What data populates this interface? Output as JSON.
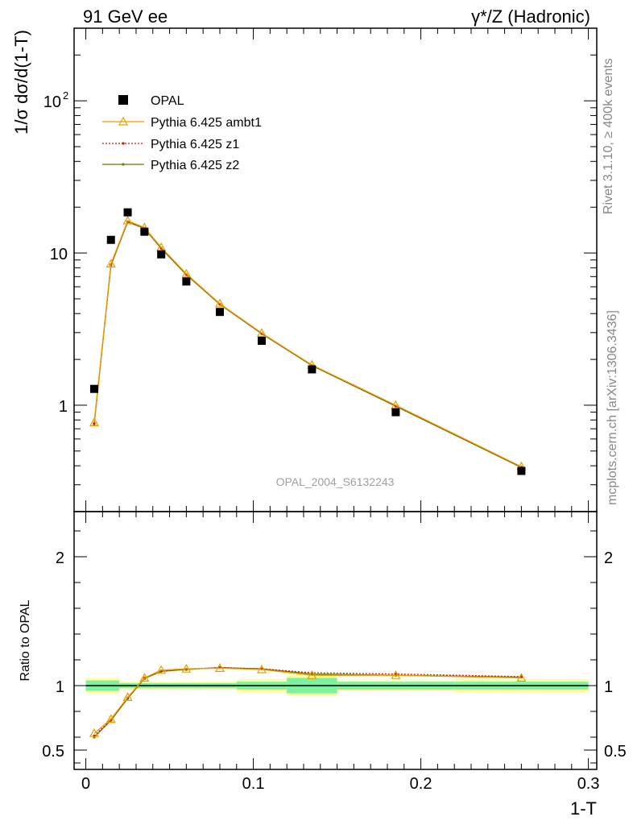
{
  "header": {
    "left": "91 GeV ee",
    "right": "γ*/Z (Hadronic)"
  },
  "side_labels": {
    "rivet": "Rivet 3.1.10, ≥ 400k events",
    "source": "mcplots.cern.ch [arXiv:1306.3436]"
  },
  "analysis_label": "OPAL_2004_S6132243",
  "colors": {
    "ambt1": "#e5a000",
    "z1": "#d21a00",
    "z2": "#6b7a00",
    "band_inner": "#7ff0a0",
    "band_outer": "#ffff99"
  },
  "chart_data": [
    {
      "type": "line",
      "panel": "main",
      "ylabel": "1/σ dσ/d(1-T)",
      "xlim": [
        -0.007,
        0.305
      ],
      "ylim": [
        0.2,
        300
      ],
      "yscale": "log",
      "y_ticks": [
        {
          "v": 1,
          "base": "1",
          "exp": ""
        },
        {
          "v": 10,
          "base": "10",
          "exp": ""
        },
        {
          "v": 100,
          "base": "10",
          "exp": "2"
        }
      ],
      "legend": {
        "placement": "top-left"
      },
      "series": [
        {
          "name": "OPAL",
          "key": "data",
          "style": "square",
          "x": [
            0.005,
            0.015,
            0.025,
            0.035,
            0.045,
            0.06,
            0.08,
            0.105,
            0.135,
            0.185,
            0.26
          ],
          "y": [
            1.28,
            12.2,
            18.5,
            13.8,
            9.8,
            6.5,
            4.1,
            2.65,
            1.72,
            0.9,
            0.37
          ]
        },
        {
          "name": "Pythia 6.425 ambt1",
          "key": "ambt1",
          "style": "triangle",
          "x": [
            0.005,
            0.015,
            0.025,
            0.035,
            0.045,
            0.06,
            0.08,
            0.105,
            0.135,
            0.185,
            0.26
          ],
          "y": [
            0.77,
            8.5,
            16.3,
            14.7,
            10.9,
            7.3,
            4.65,
            2.98,
            1.84,
            1.0,
            0.395
          ]
        },
        {
          "name": "Pythia 6.425 z1",
          "key": "z1",
          "style": "dot",
          "x": [
            0.005,
            0.015,
            0.025,
            0.035,
            0.045,
            0.06,
            0.08,
            0.105,
            0.135,
            0.185,
            0.26
          ],
          "y": [
            0.76,
            8.4,
            16.1,
            14.6,
            10.8,
            7.25,
            4.62,
            2.96,
            1.83,
            0.99,
            0.393
          ]
        },
        {
          "name": "Pythia 6.425 z2",
          "key": "z2",
          "style": "dot",
          "x": [
            0.005,
            0.015,
            0.025,
            0.035,
            0.045,
            0.06,
            0.08,
            0.105,
            0.135,
            0.185,
            0.26
          ],
          "y": [
            0.75,
            8.3,
            16.0,
            14.5,
            10.7,
            7.2,
            4.6,
            2.95,
            1.82,
            0.985,
            0.39
          ]
        }
      ]
    },
    {
      "type": "line",
      "panel": "ratio",
      "xlabel": "1-T",
      "ylabel": "Ratio to OPAL",
      "xlim": [
        -0.007,
        0.305
      ],
      "ylim": [
        0.35,
        2.35
      ],
      "x_ticks": [
        0,
        0.1,
        0.2,
        0.3
      ],
      "x_tick_labels": [
        "0",
        "0.1",
        "0.2",
        "0.3"
      ],
      "y_ticks": [
        0.5,
        1,
        2
      ],
      "y_tick_labels": [
        "0.5",
        "1",
        "2"
      ],
      "bands": {
        "edges": [
          0,
          0.02,
          0.03,
          0.04,
          0.05,
          0.07,
          0.09,
          0.12,
          0.15,
          0.22,
          0.3
        ],
        "inner": [
          0.04,
          0.02,
          0.02,
          0.02,
          0.02,
          0.02,
          0.03,
          0.06,
          0.03,
          0.03
        ],
        "outer": [
          0.06,
          0.03,
          0.03,
          0.03,
          0.03,
          0.03,
          0.05,
          0.08,
          0.04,
          0.05
        ]
      },
      "series": [
        {
          "name": "Pythia 6.425 ambt1",
          "key": "ambt1",
          "style": "triangle",
          "x": [
            0.005,
            0.015,
            0.025,
            0.035,
            0.045,
            0.06,
            0.08,
            0.105,
            0.135,
            0.185,
            0.26
          ],
          "y": [
            0.63,
            0.74,
            0.91,
            1.06,
            1.12,
            1.13,
            1.135,
            1.125,
            1.08,
            1.08,
            1.06
          ]
        },
        {
          "name": "Pythia 6.425 z1",
          "key": "z1",
          "style": "dot",
          "x": [
            0.005,
            0.015,
            0.025,
            0.035,
            0.045,
            0.06,
            0.08,
            0.105,
            0.135,
            0.185,
            0.26
          ],
          "y": [
            0.61,
            0.735,
            0.905,
            1.06,
            1.115,
            1.128,
            1.14,
            1.13,
            1.1,
            1.09,
            1.07
          ]
        },
        {
          "name": "Pythia 6.425 z2",
          "key": "z2",
          "style": "dot",
          "x": [
            0.005,
            0.015,
            0.025,
            0.035,
            0.045,
            0.06,
            0.08,
            0.105,
            0.135,
            0.185,
            0.26
          ],
          "y": [
            0.6,
            0.73,
            0.9,
            1.055,
            1.11,
            1.125,
            1.14,
            1.13,
            1.09,
            1.08,
            1.065
          ]
        }
      ]
    }
  ]
}
